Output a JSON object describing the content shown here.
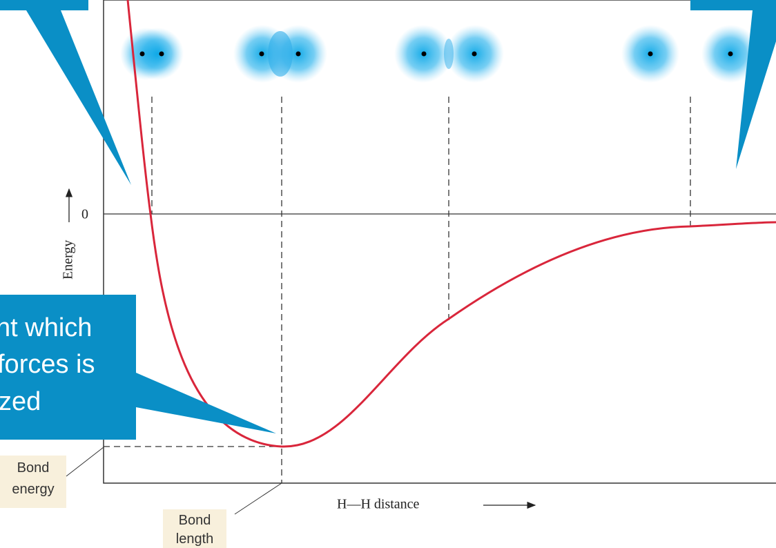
{
  "axis": {
    "zero_label": "0",
    "y_label": "Energy",
    "x_label": "H—H distance"
  },
  "labels": {
    "bond_energy": [
      "Bond",
      "energy"
    ],
    "bond_length": [
      "Bond",
      "length"
    ]
  },
  "callout": {
    "lines": [
      "nt which",
      "forces is",
      "zed"
    ]
  }
}
